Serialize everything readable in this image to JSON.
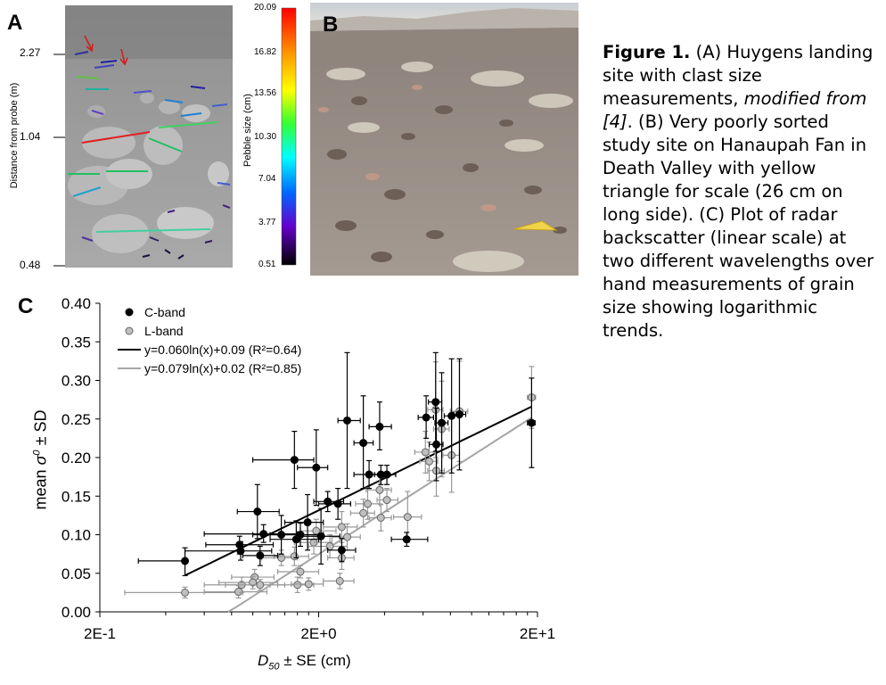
{
  "panelA": {
    "letter": "A",
    "y_axis_label": "Distance from probe (m)",
    "y_ticks": [
      "2.27",
      "1.04",
      "0.48"
    ],
    "colorbar_label": "Pebble size (cm)",
    "colorbar_ticks": [
      "20.09",
      "16.82",
      "13.56",
      "10.30",
      "7.04",
      "3.77",
      "0.51"
    ]
  },
  "panelB": {
    "letter": "B"
  },
  "panelC": {
    "letter": "C"
  },
  "caption": {
    "figure_label": "Figure 1.",
    "part1": " (A) Huygens landing site with clast size measurements, ",
    "italic1": "modified from [4]",
    "part2": ". (B) Very poorly sorted study site on Hanaupah Fan in Death Valley with yellow triangle for scale (26 cm on long side). (C) Plot of radar backscatter (linear scale) at two different wavelengths over hand measurements of grain size showing logarithmic trends."
  },
  "chart_data": {
    "type": "scatter",
    "xscale": "log",
    "xlim": [
      0.2,
      20
    ],
    "ylim": [
      0,
      0.4
    ],
    "x_ticks": [
      "2E-1",
      "2E+0",
      "2E+1"
    ],
    "y_ticks": [
      "0.00",
      "0.05",
      "0.10",
      "0.15",
      "0.20",
      "0.25",
      "0.30",
      "0.35",
      "0.40"
    ],
    "xlabel_italic": "D",
    "xlabel_sub": "50",
    "xlabel_rest": " ± SE (cm)",
    "ylabel_pre": "mean ",
    "ylabel_sym": "σ",
    "ylabel_sup": "0",
    "ylabel_post": " ± SD",
    "grid": false,
    "legend_position": "top-left",
    "series": [
      {
        "name": "C-band",
        "color": "#000000",
        "errcolor": "#000000",
        "marker_fill": "#000000",
        "points": [
          {
            "x": 0.49,
            "y": 0.066,
            "xlo": 0.3,
            "xhi": 0.49,
            "ylo": 0.047,
            "yhi": 0.083
          },
          {
            "x": 0.87,
            "y": 0.087,
            "xlo": 0.61,
            "xhi": 1.24,
            "ylo": 0.075,
            "yhi": 0.098
          },
          {
            "x": 0.88,
            "y": 0.079,
            "xlo": 0.49,
            "xhi": 1.22,
            "ylo": 0.067,
            "yhi": 0.091
          },
          {
            "x": 1.05,
            "y": 0.13,
            "xlo": 0.85,
            "xhi": 1.32,
            "ylo": 0.095,
            "yhi": 0.165
          },
          {
            "x": 1.08,
            "y": 0.073,
            "xlo": 0.9,
            "xhi": 1.3,
            "ylo": 0.06,
            "yhi": 0.085
          },
          {
            "x": 1.12,
            "y": 0.101,
            "xlo": 0.6,
            "xhi": 1.6,
            "ylo": 0.09,
            "yhi": 0.113
          },
          {
            "x": 1.35,
            "y": 0.1,
            "xlo": 1.0,
            "xhi": 1.6,
            "ylo": 0.075,
            "yhi": 0.125
          },
          {
            "x": 1.58,
            "y": 0.094,
            "xlo": 1.2,
            "xhi": 2.0,
            "ylo": 0.07,
            "yhi": 0.118
          },
          {
            "x": 1.55,
            "y": 0.197,
            "xlo": 1.0,
            "xhi": 1.9,
            "ylo": 0.16,
            "yhi": 0.234
          },
          {
            "x": 1.65,
            "y": 0.1,
            "xlo": 1.2,
            "xhi": 2.1,
            "ylo": 0.085,
            "yhi": 0.115
          },
          {
            "x": 1.78,
            "y": 0.116,
            "xlo": 1.4,
            "xhi": 2.1,
            "ylo": 0.08,
            "yhi": 0.152
          },
          {
            "x": 1.95,
            "y": 0.187,
            "xlo": 1.6,
            "xhi": 2.2,
            "ylo": 0.138,
            "yhi": 0.236
          },
          {
            "x": 2.05,
            "y": 0.098,
            "xlo": 1.65,
            "xhi": 2.5,
            "ylo": 0.062,
            "yhi": 0.134
          },
          {
            "x": 2.2,
            "y": 0.143,
            "xlo": 1.9,
            "xhi": 2.6,
            "ylo": 0.13,
            "yhi": 0.156
          },
          {
            "x": 2.45,
            "y": 0.14,
            "xlo": 2.0,
            "xhi": 2.8,
            "ylo": 0.12,
            "yhi": 0.16
          },
          {
            "x": 2.55,
            "y": 0.08,
            "xlo": 2.2,
            "xhi": 2.95,
            "ylo": 0.065,
            "yhi": 0.095
          },
          {
            "x": 2.7,
            "y": 0.248,
            "xlo": 2.45,
            "xhi": 3.1,
            "ylo": 0.16,
            "yhi": 0.336
          },
          {
            "x": 3.2,
            "y": 0.219,
            "xlo": 2.9,
            "xhi": 3.55,
            "ylo": 0.16,
            "yhi": 0.28
          },
          {
            "x": 3.4,
            "y": 0.178,
            "xlo": 2.9,
            "xhi": 3.8,
            "ylo": 0.16,
            "yhi": 0.196
          },
          {
            "x": 3.8,
            "y": 0.24,
            "xlo": 3.4,
            "xhi": 4.3,
            "ylo": 0.21,
            "yhi": 0.272
          },
          {
            "x": 3.85,
            "y": 0.178,
            "xlo": 3.5,
            "xhi": 4.2,
            "ylo": 0.165,
            "yhi": 0.19
          },
          {
            "x": 4.1,
            "y": 0.178,
            "xlo": 3.6,
            "xhi": 4.5,
            "ylo": 0.165,
            "yhi": 0.19
          },
          {
            "x": 5.05,
            "y": 0.094,
            "xlo": 4.3,
            "xhi": 6.3,
            "ylo": 0.085,
            "yhi": 0.103
          },
          {
            "x": 6.2,
            "y": 0.252,
            "xlo": 5.7,
            "xhi": 6.7,
            "ylo": 0.225,
            "yhi": 0.28
          },
          {
            "x": 6.85,
            "y": 0.272,
            "xlo": 6.35,
            "xhi": 7.3,
            "ylo": 0.208,
            "yhi": 0.336
          },
          {
            "x": 6.9,
            "y": 0.217,
            "xlo": 6.4,
            "xhi": 7.4,
            "ylo": 0.17,
            "yhi": 0.264
          },
          {
            "x": 7.3,
            "y": 0.245,
            "xlo": 6.8,
            "xhi": 7.8,
            "ylo": 0.18,
            "yhi": 0.31
          },
          {
            "x": 8.1,
            "y": 0.254,
            "xlo": 7.5,
            "xhi": 8.7,
            "ylo": 0.18,
            "yhi": 0.328
          },
          {
            "x": 8.8,
            "y": 0.256,
            "xlo": 8.3,
            "xhi": 9.4,
            "ylo": 0.184,
            "yhi": 0.328
          },
          {
            "x": 18.8,
            "y": 0.245,
            "xlo": 18.0,
            "xhi": 19.5,
            "ylo": 0.187,
            "yhi": 0.303
          }
        ]
      },
      {
        "name": "L-band",
        "color": "#999999",
        "errcolor": "#999999",
        "marker_fill": "#bfbfbf",
        "points": [
          {
            "x": 0.49,
            "y": 0.025,
            "xlo": 0.26,
            "xhi": 0.9,
            "ylo": 0.018,
            "yhi": 0.032
          },
          {
            "x": 0.86,
            "y": 0.026,
            "xlo": 0.6,
            "xhi": 1.16,
            "ylo": 0.018,
            "yhi": 0.034
          },
          {
            "x": 0.89,
            "y": 0.035,
            "xlo": 0.6,
            "xhi": 1.2,
            "ylo": 0.025,
            "yhi": 0.045
          },
          {
            "x": 1.02,
            "y": 0.045,
            "xlo": 0.8,
            "xhi": 1.25,
            "ylo": 0.035,
            "yhi": 0.055
          },
          {
            "x": 1.0,
            "y": 0.038,
            "xlo": 0.7,
            "xhi": 1.3,
            "ylo": 0.03,
            "yhi": 0.046
          },
          {
            "x": 1.08,
            "y": 0.035,
            "xlo": 0.75,
            "xhi": 1.4,
            "ylo": 0.028,
            "yhi": 0.042
          },
          {
            "x": 1.35,
            "y": 0.07,
            "xlo": 1.1,
            "xhi": 1.6,
            "ylo": 0.06,
            "yhi": 0.08
          },
          {
            "x": 1.55,
            "y": 0.072,
            "xlo": 1.25,
            "xhi": 1.8,
            "ylo": 0.06,
            "yhi": 0.084
          },
          {
            "x": 1.6,
            "y": 0.035,
            "xlo": 1.3,
            "xhi": 1.9,
            "ylo": 0.025,
            "yhi": 0.045
          },
          {
            "x": 1.65,
            "y": 0.052,
            "xlo": 1.3,
            "xhi": 2.0,
            "ylo": 0.044,
            "yhi": 0.06
          },
          {
            "x": 1.8,
            "y": 0.036,
            "xlo": 1.5,
            "xhi": 2.1,
            "ylo": 0.028,
            "yhi": 0.044
          },
          {
            "x": 1.9,
            "y": 0.09,
            "xlo": 1.55,
            "xhi": 2.3,
            "ylo": 0.075,
            "yhi": 0.105
          },
          {
            "x": 1.95,
            "y": 0.105,
            "xlo": 1.65,
            "xhi": 2.4,
            "ylo": 0.09,
            "yhi": 0.12
          },
          {
            "x": 2.25,
            "y": 0.085,
            "xlo": 1.8,
            "xhi": 2.7,
            "ylo": 0.07,
            "yhi": 0.1
          },
          {
            "x": 2.5,
            "y": 0.04,
            "xlo": 2.1,
            "xhi": 2.9,
            "ylo": 0.03,
            "yhi": 0.05
          },
          {
            "x": 2.55,
            "y": 0.07,
            "xlo": 2.2,
            "xhi": 2.9,
            "ylo": 0.055,
            "yhi": 0.085
          },
          {
            "x": 2.55,
            "y": 0.11,
            "xlo": 2.1,
            "xhi": 3.0,
            "ylo": 0.09,
            "yhi": 0.13
          },
          {
            "x": 2.7,
            "y": 0.097,
            "xlo": 2.3,
            "xhi": 3.1,
            "ylo": 0.08,
            "yhi": 0.114
          },
          {
            "x": 3.2,
            "y": 0.128,
            "xlo": 2.8,
            "xhi": 3.6,
            "ylo": 0.11,
            "yhi": 0.146
          },
          {
            "x": 3.35,
            "y": 0.14,
            "xlo": 2.95,
            "xhi": 3.8,
            "ylo": 0.12,
            "yhi": 0.16
          },
          {
            "x": 3.8,
            "y": 0.158,
            "xlo": 3.3,
            "xhi": 4.3,
            "ylo": 0.14,
            "yhi": 0.176
          },
          {
            "x": 3.85,
            "y": 0.122,
            "xlo": 3.4,
            "xhi": 4.3,
            "ylo": 0.105,
            "yhi": 0.139
          },
          {
            "x": 4.1,
            "y": 0.145,
            "xlo": 3.7,
            "xhi": 4.6,
            "ylo": 0.13,
            "yhi": 0.16
          },
          {
            "x": 5.1,
            "y": 0.123,
            "xlo": 4.4,
            "xhi": 5.9,
            "ylo": 0.09,
            "yhi": 0.156
          },
          {
            "x": 6.15,
            "y": 0.207,
            "xlo": 5.5,
            "xhi": 6.8,
            "ylo": 0.18,
            "yhi": 0.234
          },
          {
            "x": 6.4,
            "y": 0.195,
            "xlo": 5.8,
            "xhi": 7.0,
            "ylo": 0.17,
            "yhi": 0.22
          },
          {
            "x": 6.85,
            "y": 0.262,
            "xlo": 6.3,
            "xhi": 7.4,
            "ylo": 0.2,
            "yhi": 0.324
          },
          {
            "x": 6.9,
            "y": 0.183,
            "xlo": 6.3,
            "xhi": 7.5,
            "ylo": 0.15,
            "yhi": 0.216
          },
          {
            "x": 7.3,
            "y": 0.237,
            "xlo": 6.7,
            "xhi": 7.9,
            "ylo": 0.175,
            "yhi": 0.299
          },
          {
            "x": 8.1,
            "y": 0.203,
            "xlo": 7.4,
            "xhi": 8.8,
            "ylo": 0.155,
            "yhi": 0.251
          },
          {
            "x": 8.8,
            "y": 0.26,
            "xlo": 8.0,
            "xhi": 9.6,
            "ylo": 0.195,
            "yhi": 0.325
          },
          {
            "x": 18.8,
            "y": 0.278,
            "xlo": 18.0,
            "xhi": 19.6,
            "ylo": 0.238,
            "yhi": 0.318
          }
        ]
      }
    ],
    "fits": [
      {
        "label": "y=0.060ln(x)+0.09 (R²=0.64)",
        "a": 0.06,
        "b": 0.09,
        "xfrom": 0.49,
        "xto": 18.8,
        "color": "#000000"
      },
      {
        "label": "y=0.079ln(x)+0.02 (R²=0.85)",
        "a": 0.079,
        "b": 0.02,
        "xfrom": 0.77,
        "xto": 18.8,
        "color": "#a6a6a6"
      }
    ]
  }
}
